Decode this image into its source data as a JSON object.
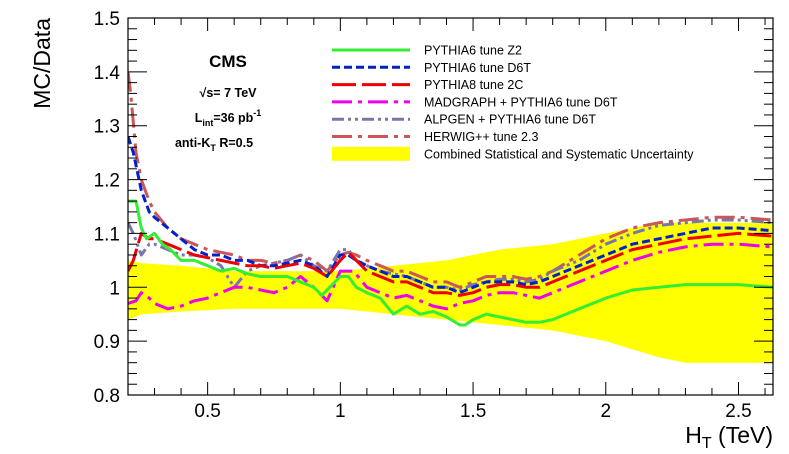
{
  "chart_data": {
    "type": "line",
    "xlabel": "H_T (TeV)",
    "ylabel": "MC/Data",
    "xlim": [
      0.2,
      2.63
    ],
    "ylim": [
      0.8,
      1.5
    ],
    "x_ticks": [
      "0.5",
      "1",
      "1.5",
      "2",
      "2.5"
    ],
    "x_tick_values": [
      0.5,
      1.0,
      1.5,
      2.0,
      2.5
    ],
    "y_ticks": [
      "0.8",
      "0.9",
      "1",
      "1.1",
      "1.2",
      "1.3",
      "1.4",
      "1.5"
    ],
    "y_tick_values": [
      0.8,
      0.9,
      1.0,
      1.1,
      1.2,
      1.3,
      1.4,
      1.5
    ],
    "grid": false,
    "legend_position": "top-right",
    "annotations": {
      "experiment": "CMS",
      "energy": "√s= 7 TeV",
      "lumi_prefix": "L",
      "lumi_sub": "int",
      "lumi_value": "=36 pb",
      "lumi_sup": "-1",
      "algo_prefix": "anti-K",
      "algo_sub": "T",
      "algo_suffix": " R=0.5"
    },
    "band": {
      "name": "Combined Statistical and Systematic Uncertainty",
      "color": "#ffff00",
      "x": [
        0.2,
        0.25,
        0.4,
        0.6,
        0.8,
        1.0,
        1.2,
        1.4,
        1.6,
        1.8,
        2.0,
        2.2,
        2.3,
        2.4,
        2.5,
        2.63
      ],
      "upper": [
        1.05,
        1.045,
        1.04,
        1.03,
        1.03,
        1.03,
        1.04,
        1.05,
        1.07,
        1.08,
        1.1,
        1.12,
        1.12,
        1.12,
        1.12,
        1.12
      ],
      "lower": [
        0.94,
        0.95,
        0.955,
        0.96,
        0.96,
        0.96,
        0.95,
        0.94,
        0.93,
        0.92,
        0.9,
        0.87,
        0.86,
        0.86,
        0.86,
        0.86
      ]
    },
    "series": [
      {
        "name": "PYTHIA6 tune Z2",
        "color": "#33ee33",
        "style": "solid",
        "width": 3,
        "x": [
          0.2,
          0.23,
          0.25,
          0.27,
          0.3,
          0.33,
          0.36,
          0.4,
          0.45,
          0.5,
          0.55,
          0.6,
          0.65,
          0.7,
          0.75,
          0.8,
          0.85,
          0.9,
          0.93,
          0.96,
          1.0,
          1.03,
          1.06,
          1.1,
          1.15,
          1.2,
          1.25,
          1.3,
          1.35,
          1.4,
          1.45,
          1.47,
          1.5,
          1.55,
          1.6,
          1.65,
          1.7,
          1.75,
          1.8,
          1.9,
          2.0,
          2.1,
          2.2,
          2.3,
          2.4,
          2.5,
          2.63
        ],
        "values": [
          1.16,
          1.16,
          1.11,
          1.09,
          1.1,
          1.08,
          1.07,
          1.05,
          1.05,
          1.04,
          1.03,
          1.035,
          1.025,
          1.02,
          1.02,
          1.02,
          1.01,
          1.0,
          0.985,
          1.0,
          1.02,
          1.02,
          1.0,
          0.99,
          0.98,
          0.95,
          0.965,
          0.95,
          0.955,
          0.945,
          0.93,
          0.93,
          0.94,
          0.95,
          0.945,
          0.94,
          0.935,
          0.935,
          0.94,
          0.96,
          0.98,
          0.995,
          1.0,
          1.005,
          1.005,
          1.005,
          1.0
        ]
      },
      {
        "name": "PYTHIA6 tune D6T",
        "color": "#0022cc",
        "style": "dashed",
        "width": 3,
        "x": [
          0.2,
          0.22,
          0.25,
          0.28,
          0.3,
          0.35,
          0.4,
          0.45,
          0.5,
          0.55,
          0.6,
          0.65,
          0.7,
          0.75,
          0.8,
          0.85,
          0.9,
          0.95,
          1.0,
          1.03,
          1.06,
          1.1,
          1.15,
          1.2,
          1.25,
          1.3,
          1.35,
          1.4,
          1.45,
          1.5,
          1.55,
          1.6,
          1.65,
          1.7,
          1.75,
          1.8,
          1.9,
          2.0,
          2.1,
          2.2,
          2.3,
          2.4,
          2.5,
          2.63
        ],
        "values": [
          1.28,
          1.25,
          1.18,
          1.14,
          1.13,
          1.11,
          1.09,
          1.07,
          1.06,
          1.06,
          1.05,
          1.05,
          1.04,
          1.04,
          1.045,
          1.05,
          1.04,
          1.02,
          1.06,
          1.06,
          1.05,
          1.04,
          1.03,
          1.02,
          1.02,
          1.01,
          1.0,
          1.0,
          0.99,
          1.0,
          1.01,
          1.01,
          1.01,
          1.005,
          1.01,
          1.02,
          1.04,
          1.06,
          1.08,
          1.09,
          1.1,
          1.11,
          1.11,
          1.105
        ]
      },
      {
        "name": "PYTHIA8 tune 2C",
        "color": "#ee0000",
        "style": "longdash",
        "width": 3,
        "x": [
          0.2,
          0.22,
          0.25,
          0.28,
          0.3,
          0.35,
          0.4,
          0.45,
          0.5,
          0.55,
          0.6,
          0.65,
          0.7,
          0.75,
          0.8,
          0.85,
          0.9,
          0.95,
          1.0,
          1.03,
          1.06,
          1.1,
          1.15,
          1.2,
          1.25,
          1.3,
          1.35,
          1.4,
          1.45,
          1.5,
          1.55,
          1.6,
          1.65,
          1.7,
          1.75,
          1.8,
          1.9,
          2.0,
          2.1,
          2.2,
          2.3,
          2.4,
          2.5,
          2.63
        ],
        "values": [
          1.03,
          1.05,
          1.1,
          1.09,
          1.09,
          1.08,
          1.07,
          1.06,
          1.055,
          1.05,
          1.045,
          1.04,
          1.04,
          1.035,
          1.04,
          1.045,
          1.035,
          1.02,
          1.05,
          1.065,
          1.05,
          1.03,
          1.02,
          1.01,
          1.01,
          1.0,
          0.99,
          0.99,
          0.985,
          0.99,
          1.0,
          1.005,
          1.005,
          1.0,
          1.0,
          1.01,
          1.03,
          1.05,
          1.07,
          1.08,
          1.09,
          1.095,
          1.1,
          1.095
        ]
      },
      {
        "name": "MADGRAPH + PYTHIA6 tune D6T",
        "color": "#ee00ee",
        "style": "dashdot",
        "width": 3,
        "x": [
          0.2,
          0.23,
          0.25,
          0.28,
          0.3,
          0.35,
          0.4,
          0.45,
          0.5,
          0.55,
          0.6,
          0.65,
          0.7,
          0.75,
          0.8,
          0.85,
          0.9,
          0.95,
          1.0,
          1.05,
          1.1,
          1.15,
          1.2,
          1.25,
          1.3,
          1.35,
          1.4,
          1.45,
          1.5,
          1.55,
          1.6,
          1.65,
          1.7,
          1.75,
          1.8,
          1.9,
          2.0,
          2.1,
          2.2,
          2.3,
          2.4,
          2.5,
          2.63
        ],
        "values": [
          0.97,
          0.975,
          0.99,
          0.98,
          0.97,
          0.96,
          0.965,
          0.975,
          0.98,
          0.99,
          1.0,
          1.0,
          0.995,
          0.99,
          1.0,
          1.02,
          1.0,
          0.975,
          1.03,
          1.03,
          1.0,
          0.99,
          0.98,
          0.985,
          0.975,
          0.965,
          0.96,
          0.97,
          0.975,
          0.985,
          0.99,
          0.99,
          0.985,
          0.98,
          0.99,
          1.01,
          1.03,
          1.05,
          1.065,
          1.075,
          1.08,
          1.08,
          1.075
        ]
      },
      {
        "name": "ALPGEN + PYTHIA6 tune D6T",
        "color": "#7777aa",
        "style": "dashdotdot",
        "width": 3,
        "x": [
          0.2,
          0.22,
          0.25,
          0.28,
          0.3,
          0.35,
          0.4,
          0.45,
          0.5,
          0.55,
          0.6,
          0.65,
          0.7,
          0.75,
          0.8,
          0.85,
          0.9,
          0.95,
          1.0,
          1.03,
          1.06,
          1.1,
          1.15,
          1.2,
          1.25,
          1.3,
          1.35,
          1.4,
          1.45,
          1.5,
          1.55,
          1.6,
          1.65,
          1.7,
          1.75,
          1.8,
          1.9,
          2.0,
          2.1,
          2.2,
          2.3,
          2.4,
          2.5,
          2.63
        ],
        "values": [
          1.12,
          1.1,
          1.06,
          1.08,
          1.08,
          1.07,
          1.06,
          1.06,
          1.055,
          1.04,
          1.0,
          1.03,
          1.04,
          1.045,
          1.05,
          1.06,
          1.04,
          1.03,
          1.07,
          1.07,
          1.05,
          1.04,
          1.03,
          1.025,
          1.02,
          1.01,
          1.0,
          1.0,
          0.995,
          1.005,
          1.01,
          1.015,
          1.015,
          1.01,
          1.015,
          1.03,
          1.05,
          1.08,
          1.1,
          1.115,
          1.12,
          1.125,
          1.125,
          1.12
        ]
      },
      {
        "name": "HERWIG++ tune 2.3",
        "color": "#cc5555",
        "style": "dashdot",
        "width": 3,
        "x": [
          0.2,
          0.21,
          0.23,
          0.25,
          0.28,
          0.3,
          0.35,
          0.4,
          0.45,
          0.5,
          0.55,
          0.6,
          0.65,
          0.7,
          0.75,
          0.8,
          0.85,
          0.9,
          0.95,
          1.0,
          1.03,
          1.06,
          1.1,
          1.15,
          1.2,
          1.25,
          1.3,
          1.35,
          1.4,
          1.45,
          1.5,
          1.55,
          1.6,
          1.65,
          1.7,
          1.75,
          1.8,
          1.9,
          2.0,
          2.1,
          2.2,
          2.3,
          2.4,
          2.5,
          2.63
        ],
        "values": [
          1.4,
          1.36,
          1.25,
          1.2,
          1.16,
          1.14,
          1.11,
          1.09,
          1.08,
          1.07,
          1.065,
          1.06,
          1.05,
          1.05,
          1.045,
          1.05,
          1.06,
          1.05,
          1.03,
          1.06,
          1.065,
          1.06,
          1.05,
          1.04,
          1.03,
          1.03,
          1.02,
          1.01,
          1.01,
          1.0,
          1.01,
          1.02,
          1.02,
          1.02,
          1.015,
          1.02,
          1.03,
          1.06,
          1.09,
          1.11,
          1.12,
          1.125,
          1.13,
          1.13,
          1.125
        ]
      }
    ]
  }
}
